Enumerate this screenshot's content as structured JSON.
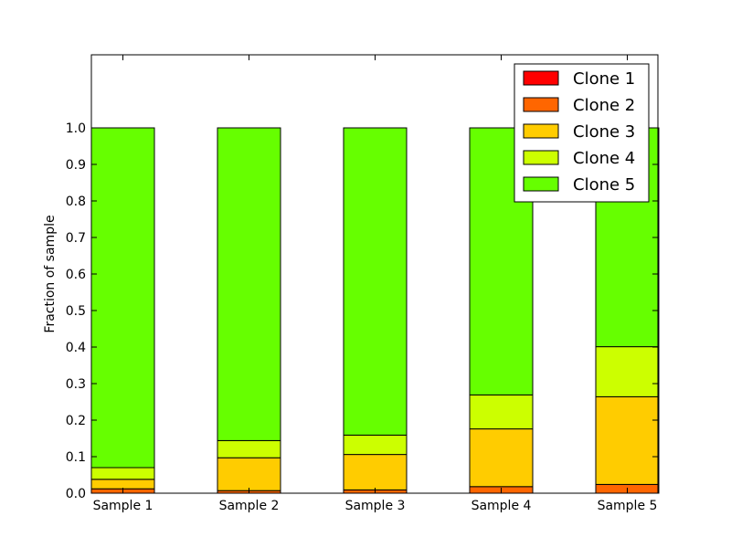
{
  "chart_data": {
    "type": "bar",
    "stacked": true,
    "categories": [
      "Sample 1",
      "Sample 2",
      "Sample 3",
      "Sample 4",
      "Sample 5"
    ],
    "series": [
      {
        "name": "Clone 1",
        "color": "#ff0000",
        "values": [
          0.0,
          0.0,
          0.0,
          0.0,
          0.0
        ]
      },
      {
        "name": "Clone 2",
        "color": "#ff6600",
        "values": [
          0.012,
          0.007,
          0.009,
          0.018,
          0.024
        ]
      },
      {
        "name": "Clone 3",
        "color": "#ffcc00",
        "values": [
          0.026,
          0.09,
          0.097,
          0.158,
          0.24
        ]
      },
      {
        "name": "Clone 4",
        "color": "#ccff00",
        "values": [
          0.032,
          0.047,
          0.053,
          0.093,
          0.137
        ]
      },
      {
        "name": "Clone 5",
        "color": "#66ff00",
        "values": [
          0.93,
          0.856,
          0.841,
          0.731,
          0.599
        ]
      }
    ],
    "ylabel": "Fraction of sample",
    "xlabel": "",
    "ylim": [
      0,
      1.2
    ],
    "yticks": [
      "0.0",
      "0.1",
      "0.2",
      "0.3",
      "0.4",
      "0.5",
      "0.6",
      "0.7",
      "0.8",
      "0.9",
      "1.0"
    ],
    "legend_position": "top-right",
    "grid": false
  }
}
